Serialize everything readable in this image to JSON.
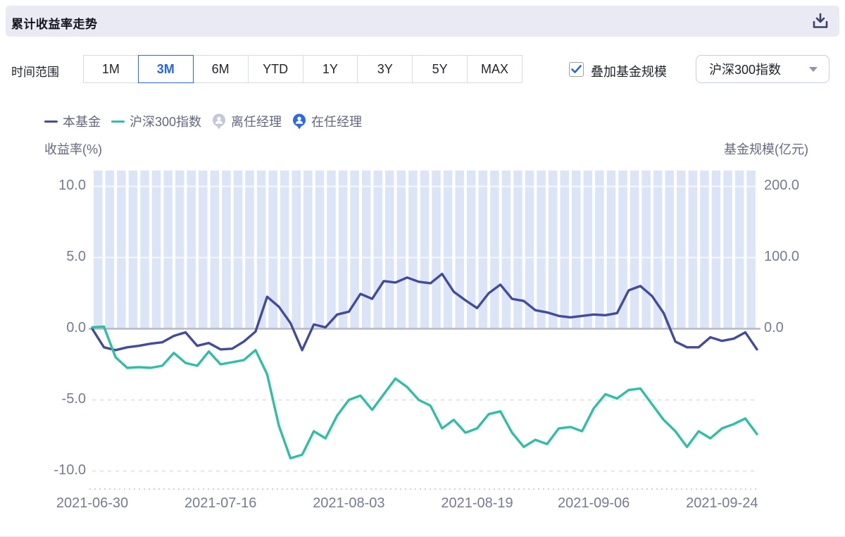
{
  "header": {
    "title": "累计收益率走势"
  },
  "controls": {
    "time_range_label": "时间范围",
    "time_ranges": [
      "1M",
      "3M",
      "6M",
      "YTD",
      "1Y",
      "3Y",
      "5Y",
      "MAX"
    ],
    "active_time_range": "3M",
    "overlay_checkbox_label": "叠加基金规模",
    "overlay_checked": true,
    "benchmark_dropdown_value": "沪深300指数"
  },
  "legend": {
    "items": [
      {
        "label": "本基金",
        "marker": "line",
        "color": "#424C9B"
      },
      {
        "label": "沪深300指数",
        "marker": "line",
        "color": "#30BFA6"
      },
      {
        "label": "离任经理",
        "marker": "person-pin",
        "color": "#C2C7D9"
      },
      {
        "label": "在任经理",
        "marker": "person-pin",
        "color": "#2B69E6"
      }
    ]
  },
  "colors": {
    "accent_blue": "#2468E5",
    "fund_line": "#424C9B",
    "benchmark_line": "#30BFA6",
    "scale_bars": "#DBE5F7",
    "zero_line": "#B6B8C2",
    "grid_dashed": "#E3E4EB",
    "axis_text": "#767B93",
    "header_bg": "#E9EAF3"
  },
  "chart_data": {
    "type": "line",
    "title": "累计收益率走势",
    "left_axis": {
      "label": "收益率(%)",
      "ticks": [
        10.0,
        5.0,
        0.0,
        -5.0,
        -10.0
      ],
      "range": [
        -11.2,
        11.1
      ],
      "grid": "dashed"
    },
    "right_axis": {
      "label": "基金规模(亿元)",
      "ticks": [
        200.0,
        100.0,
        0.0
      ]
    },
    "x_ticks": [
      "2021-06-30",
      "2021-07-16",
      "2021-08-03",
      "2021-08-19",
      "2021-09-06",
      "2021-09-24"
    ],
    "x_tick_indices": [
      0,
      11,
      22,
      33,
      43,
      54
    ],
    "series": [
      {
        "name": "本基金",
        "color": "#424C9B",
        "values": [
          0.0,
          -1.3,
          -1.5,
          -1.3,
          -1.2,
          -1.05,
          -0.95,
          -0.5,
          -0.25,
          -1.2,
          -1.0,
          -1.45,
          -1.4,
          -0.9,
          -0.2,
          2.25,
          1.55,
          0.4,
          -1.5,
          0.3,
          0.1,
          1.0,
          1.2,
          2.45,
          2.1,
          3.35,
          3.25,
          3.6,
          3.3,
          3.2,
          3.85,
          2.6,
          2.0,
          1.45,
          2.5,
          3.1,
          2.1,
          1.95,
          1.3,
          1.15,
          0.9,
          0.8,
          0.9,
          1.0,
          0.95,
          1.1,
          2.7,
          3.0,
          2.3,
          1.1,
          -0.9,
          -1.3,
          -1.3,
          -0.6,
          -0.85,
          -0.7,
          -0.25,
          -1.45
        ]
      },
      {
        "name": "沪深300指数",
        "color": "#30BFA6",
        "values": [
          0.1,
          0.15,
          -2.0,
          -2.75,
          -2.7,
          -2.75,
          -2.6,
          -1.7,
          -2.4,
          -2.6,
          -1.6,
          -2.5,
          -2.35,
          -2.2,
          -1.5,
          -3.2,
          -6.8,
          -9.1,
          -8.85,
          -7.2,
          -7.7,
          -6.1,
          -5.0,
          -4.7,
          -5.7,
          -4.6,
          -3.5,
          -4.1,
          -5.0,
          -5.4,
          -7.0,
          -6.4,
          -7.3,
          -7.0,
          -6.0,
          -5.8,
          -7.3,
          -8.3,
          -7.8,
          -8.1,
          -7.0,
          -6.9,
          -7.2,
          -5.6,
          -4.6,
          -4.9,
          -4.3,
          -4.2,
          -5.3,
          -6.4,
          -7.2,
          -8.3,
          -7.2,
          -7.7,
          -7.0,
          -6.7,
          -6.3,
          -7.4
        ]
      }
    ],
    "fund_scale_bars": {
      "name": "基金规模",
      "color": "#DBE5F7",
      "count": 57,
      "display_value": 222,
      "note": "uniform vertical bars from 0-line to plot top (~222 亿元, clipped)"
    }
  }
}
